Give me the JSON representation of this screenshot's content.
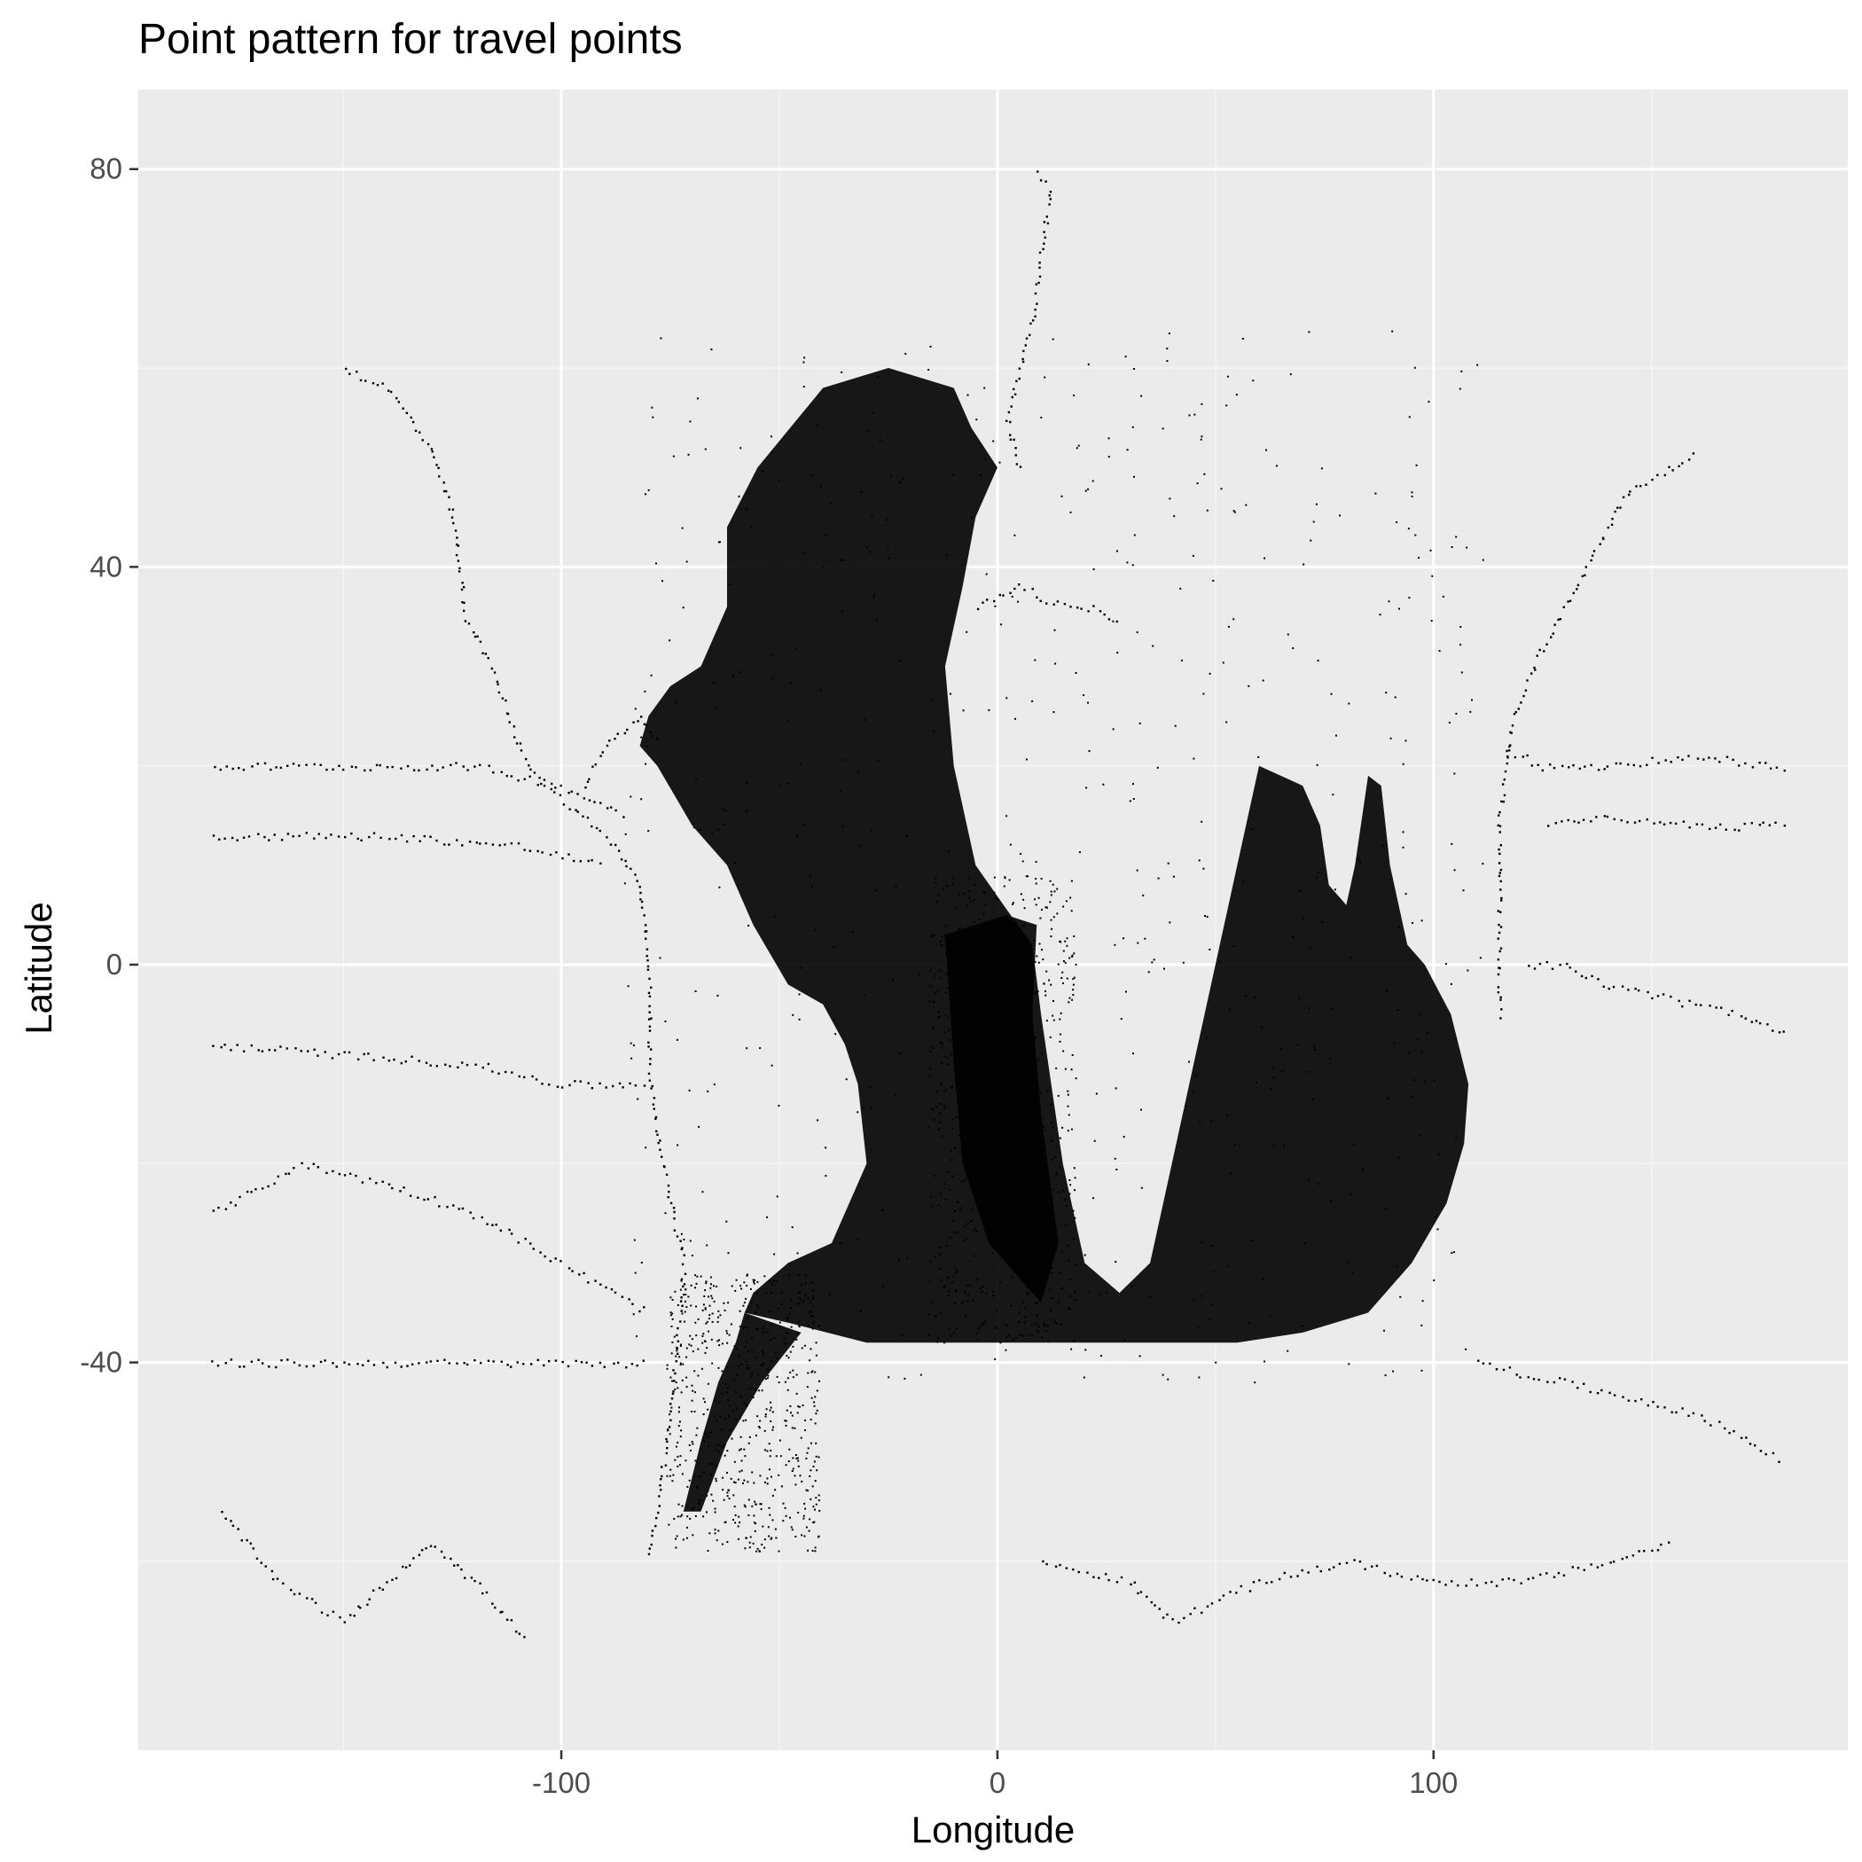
{
  "chart_data": {
    "type": "scatter",
    "title": "Point pattern for travel points",
    "xlabel": "Longitude",
    "ylabel": "Latitude",
    "xlim": [
      -197,
      195
    ],
    "ylim": [
      -79,
      88
    ],
    "x_major_ticks": [
      -100,
      0,
      100
    ],
    "x_minor_ticks": [
      -150,
      -50,
      50,
      150
    ],
    "y_major_ticks": [
      -40,
      0,
      40,
      80
    ],
    "y_minor_ticks": [
      -60,
      -20,
      20,
      60
    ],
    "x_tick_labels": [
      "-100",
      "0",
      "100"
    ],
    "y_tick_labels": [
      "-40",
      "0",
      "40",
      "80"
    ],
    "grid": true,
    "legend": "none",
    "colors": {
      "panel_background": "#ebebeb",
      "grid_major": "#ffffff",
      "grid_minor": "#f5f5f5",
      "point": "#000000",
      "tick_label": "#4d4d4d",
      "tick_mark": "#333333"
    },
    "dense_regions": [
      {
        "name": "north-atlantic",
        "polygon": [
          [
            -62,
            36
          ],
          [
            -68,
            30
          ],
          [
            -75,
            28
          ],
          [
            -80,
            25
          ],
          [
            -82,
            22
          ],
          [
            -78,
            20
          ],
          [
            -70,
            14
          ],
          [
            -62,
            10
          ],
          [
            -56,
            4
          ],
          [
            -48,
            -2
          ],
          [
            -40,
            -4
          ],
          [
            -35,
            -8
          ],
          [
            -32,
            -12
          ],
          [
            -30,
            -20
          ],
          [
            -38,
            -28
          ],
          [
            -48,
            -30
          ],
          [
            -56,
            -33
          ],
          [
            -58,
            -35
          ],
          [
            -48,
            -36
          ],
          [
            -30,
            -38
          ],
          [
            -10,
            -38
          ],
          [
            10,
            -38
          ],
          [
            22,
            -38
          ],
          [
            35,
            -38
          ],
          [
            55,
            -38
          ],
          [
            70,
            -37
          ],
          [
            85,
            -35
          ],
          [
            95,
            -30
          ],
          [
            103,
            -24
          ],
          [
            107,
            -18
          ],
          [
            108,
            -12
          ],
          [
            104,
            -5
          ],
          [
            98,
            0
          ],
          [
            94,
            2
          ],
          [
            90,
            10
          ],
          [
            88,
            18
          ],
          [
            85,
            19
          ],
          [
            82,
            10
          ],
          [
            80,
            6
          ],
          [
            76,
            8
          ],
          [
            74,
            14
          ],
          [
            70,
            18
          ],
          [
            60,
            20
          ],
          [
            55,
            10
          ],
          [
            50,
            0
          ],
          [
            45,
            -10
          ],
          [
            40,
            -20
          ],
          [
            35,
            -30
          ],
          [
            28,
            -33
          ],
          [
            20,
            -30
          ],
          [
            15,
            -20
          ],
          [
            10,
            -5
          ],
          [
            8,
            2
          ],
          [
            3,
            5
          ],
          [
            -5,
            10
          ],
          [
            -10,
            20
          ],
          [
            -12,
            30
          ],
          [
            -8,
            38
          ],
          [
            -5,
            45
          ],
          [
            0,
            50
          ],
          [
            -6,
            54
          ],
          [
            -10,
            58
          ],
          [
            -25,
            60
          ],
          [
            -40,
            58
          ],
          [
            -55,
            50
          ],
          [
            -62,
            44
          ]
        ]
      },
      {
        "name": "west-africa-bulge",
        "polygon": [
          [
            -12,
            3
          ],
          [
            -10,
            -10
          ],
          [
            -8,
            -20
          ],
          [
            -2,
            -28
          ],
          [
            10,
            -34
          ],
          [
            14,
            -28
          ],
          [
            10,
            -15
          ],
          [
            8,
            -5
          ],
          [
            9,
            4
          ],
          [
            2,
            5
          ],
          [
            -5,
            4
          ]
        ]
      },
      {
        "name": "south-america-coast",
        "polygon": [
          [
            -58,
            -35
          ],
          [
            -60,
            -38
          ],
          [
            -64,
            -42
          ],
          [
            -68,
            -48
          ],
          [
            -72,
            -55
          ],
          [
            -68,
            -55
          ],
          [
            -62,
            -48
          ],
          [
            -54,
            -42
          ],
          [
            -45,
            -37
          ]
        ]
      }
    ],
    "tracks": [
      {
        "name": "us-west-coast",
        "points": [
          [
            -150,
            60
          ],
          [
            -140,
            58
          ],
          [
            -130,
            52
          ],
          [
            -125,
            45
          ],
          [
            -122,
            35
          ],
          [
            -116,
            30
          ],
          [
            -110,
            22
          ],
          [
            -104,
            18
          ],
          [
            -95,
            15
          ],
          [
            -88,
            12
          ],
          [
            -82,
            8
          ],
          [
            -80,
            0
          ],
          [
            -80,
            -10
          ],
          [
            -77,
            -20
          ],
          [
            -72,
            -30
          ],
          [
            -74,
            -40
          ],
          [
            -76,
            -48
          ],
          [
            -80,
            -60
          ]
        ]
      },
      {
        "name": "pacific-equatorial",
        "points": [
          [
            -180,
            -8
          ],
          [
            -150,
            -9
          ],
          [
            -120,
            -10
          ],
          [
            -100,
            -12
          ],
          [
            -80,
            -12
          ]
        ]
      },
      {
        "name": "pacific-north",
        "points": [
          [
            -180,
            20
          ],
          [
            -150,
            20
          ],
          [
            -120,
            20
          ],
          [
            -100,
            18
          ],
          [
            -85,
            15
          ]
        ]
      },
      {
        "name": "pacific-13n",
        "points": [
          [
            -180,
            13
          ],
          [
            -140,
            13
          ],
          [
            -110,
            12
          ],
          [
            -90,
            10
          ]
        ]
      },
      {
        "name": "pacific-south",
        "points": [
          [
            -180,
            -40
          ],
          [
            -150,
            -40
          ],
          [
            -120,
            -40
          ],
          [
            -100,
            -40
          ],
          [
            -80,
            -40
          ]
        ]
      },
      {
        "name": "pacific-west-25s",
        "points": [
          [
            -180,
            -25
          ],
          [
            -160,
            -20
          ],
          [
            -140,
            -22
          ],
          [
            -120,
            -25
          ],
          [
            -100,
            -30
          ],
          [
            -80,
            -35
          ]
        ]
      },
      {
        "name": "pacific-southwest-loop",
        "points": [
          [
            -178,
            -55
          ],
          [
            -165,
            -62
          ],
          [
            -150,
            -66
          ],
          [
            -140,
            -62
          ],
          [
            -130,
            -58
          ],
          [
            -120,
            -62
          ],
          [
            -108,
            -68
          ]
        ]
      },
      {
        "name": "pacific-east",
        "points": [
          [
            180,
            -7
          ],
          [
            170,
            -5
          ],
          [
            160,
            -4
          ],
          [
            150,
            -3
          ],
          [
            140,
            -2
          ],
          [
            130,
            0
          ],
          [
            120,
            0
          ]
        ]
      },
      {
        "name": "pacific-east-20n",
        "points": [
          [
            180,
            20
          ],
          [
            160,
            21
          ],
          [
            140,
            20
          ],
          [
            125,
            20
          ],
          [
            115,
            22
          ]
        ]
      },
      {
        "name": "pacific-east-14n",
        "points": [
          [
            180,
            14
          ],
          [
            160,
            14
          ],
          [
            140,
            15
          ],
          [
            125,
            14
          ]
        ]
      },
      {
        "name": "asia-japan",
        "points": [
          [
            115,
            -5
          ],
          [
            115,
            5
          ],
          [
            115,
            15
          ],
          [
            118,
            25
          ],
          [
            125,
            32
          ],
          [
            135,
            40
          ],
          [
            145,
            48
          ],
          [
            155,
            50
          ],
          [
            160,
            52
          ]
        ]
      },
      {
        "name": "australia-south",
        "points": [
          [
            110,
            -40
          ],
          [
            130,
            -42
          ],
          [
            150,
            -44
          ],
          [
            165,
            -46
          ],
          [
            180,
            -50
          ]
        ]
      },
      {
        "name": "southern-ocean",
        "points": [
          [
            10,
            -60
          ],
          [
            30,
            -62
          ],
          [
            40,
            -66
          ],
          [
            60,
            -62
          ],
          [
            80,
            -60
          ],
          [
            100,
            -62
          ],
          [
            120,
            -62
          ],
          [
            140,
            -60
          ],
          [
            155,
            -58
          ]
        ]
      },
      {
        "name": "arctic-norway",
        "points": [
          [
            5,
            50
          ],
          [
            2,
            55
          ],
          [
            5,
            60
          ],
          [
            8,
            65
          ],
          [
            10,
            72
          ],
          [
            12,
            78
          ],
          [
            8,
            80
          ]
        ]
      },
      {
        "name": "mediterranean",
        "points": [
          [
            -5,
            36
          ],
          [
            5,
            38
          ],
          [
            15,
            36
          ],
          [
            22,
            36
          ],
          [
            28,
            34
          ]
        ]
      },
      {
        "name": "gulf-mexico",
        "points": [
          [
            -95,
            18
          ],
          [
            -90,
            22
          ],
          [
            -85,
            24
          ],
          [
            -82,
            25
          ],
          [
            -78,
            22
          ]
        ]
      }
    ]
  }
}
